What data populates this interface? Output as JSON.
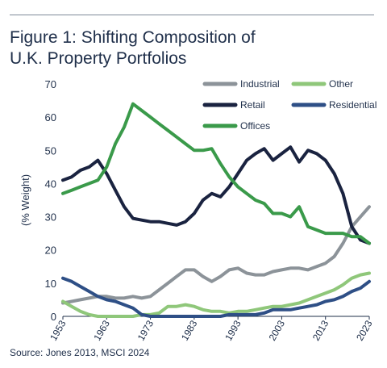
{
  "figure": {
    "title_line1": "Figure 1: Shifting Composition of",
    "title_line2": "U.K. Property Portfolios",
    "source": "Source: Jones 2013, MSCI 2024"
  },
  "chart_data": {
    "type": "line",
    "ylabel": "(% Weight)",
    "xlabel": "",
    "xlim": [
      1953,
      2023
    ],
    "ylim": [
      0,
      70
    ],
    "yticks": [
      0,
      10,
      20,
      30,
      40,
      50,
      60,
      70
    ],
    "xticks": [
      "1953",
      "1963",
      "1973",
      "1983",
      "1993",
      "2003",
      "2013",
      "2023"
    ],
    "grid": false,
    "legend_position": "top-right",
    "x": [
      1953,
      1955,
      1957,
      1959,
      1961,
      1963,
      1965,
      1967,
      1969,
      1971,
      1973,
      1975,
      1977,
      1979,
      1981,
      1983,
      1985,
      1987,
      1989,
      1991,
      1993,
      1995,
      1997,
      1999,
      2001,
      2003,
      2005,
      2007,
      2009,
      2011,
      2013,
      2015,
      2017,
      2019,
      2021,
      2023
    ],
    "series": [
      {
        "name": "Industrial",
        "color": "#8c9399",
        "values": [
          4,
          4.5,
          5,
          5.5,
          6,
          6,
          5.5,
          5.5,
          6,
          5.5,
          6,
          8,
          10,
          12,
          14,
          14,
          12,
          10.5,
          12,
          14,
          14.5,
          13,
          12.5,
          12.5,
          13.5,
          14,
          14.5,
          14.5,
          14,
          15,
          16,
          18,
          22,
          27,
          30,
          33
        ]
      },
      {
        "name": "Other",
        "color": "#8fc77a",
        "values": [
          4.5,
          3,
          1.5,
          0.5,
          0,
          0,
          0,
          0,
          0,
          0.5,
          0.5,
          1,
          3,
          3,
          3.5,
          3,
          2,
          1.5,
          1.5,
          1,
          1.5,
          1.5,
          2,
          2.5,
          3,
          3,
          3.5,
          4,
          5,
          6,
          7,
          8,
          9.5,
          11.5,
          12.5,
          13
        ]
      },
      {
        "name": "Retail",
        "color": "#1a2340",
        "values": [
          41,
          42,
          44,
          45,
          47,
          43,
          38,
          33,
          29.5,
          29,
          28.5,
          28.5,
          28,
          27.5,
          28.5,
          31,
          35,
          37,
          36,
          39,
          43,
          47,
          49,
          50.5,
          47,
          49,
          51,
          46.5,
          50,
          49,
          47,
          43,
          37,
          27,
          23,
          22
        ]
      },
      {
        "name": "Residential",
        "color": "#2e4f86",
        "values": [
          11.5,
          10.5,
          9,
          7.5,
          6,
          5,
          4.5,
          3.5,
          2.5,
          0.5,
          0,
          0,
          0,
          0,
          0,
          0,
          0,
          0,
          0,
          0.5,
          0.5,
          0.5,
          0.5,
          1,
          2,
          2,
          2,
          2.5,
          3,
          3.5,
          4.5,
          5,
          6,
          7.5,
          8.5,
          10.5
        ]
      },
      {
        "name": "Offices",
        "color": "#3a9a4a",
        "values": [
          37,
          38,
          39,
          40,
          41,
          45,
          52,
          57,
          64,
          62,
          60,
          58,
          56,
          54,
          52,
          50,
          50,
          50.5,
          46,
          42,
          39,
          37,
          35,
          34,
          31,
          31,
          30,
          33,
          27,
          26,
          25,
          25,
          25,
          24,
          24,
          22
        ]
      }
    ]
  }
}
